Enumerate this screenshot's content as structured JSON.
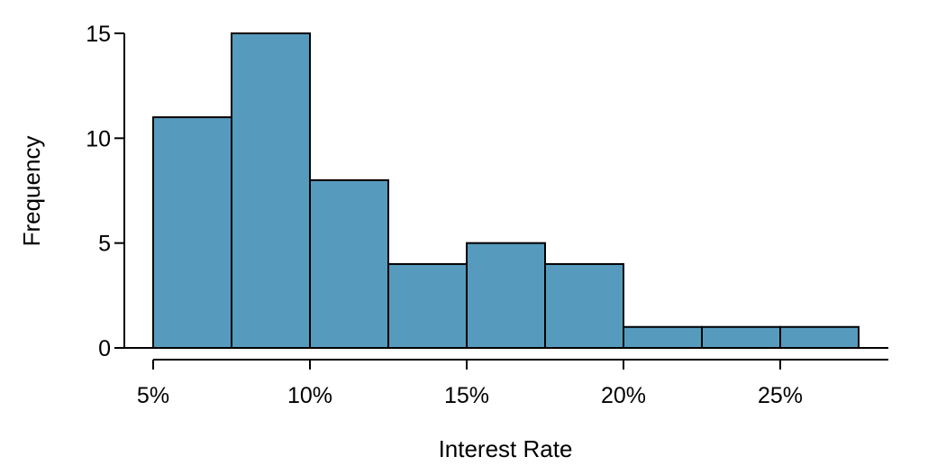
{
  "chart_data": {
    "type": "bar",
    "subtype": "histogram",
    "title": "",
    "xlabel": "Interest Rate",
    "ylabel": "Frequency",
    "bin_edges": [
      5,
      7.5,
      10,
      12.5,
      15,
      17.5,
      20,
      22.5,
      25,
      27.5
    ],
    "frequencies": [
      11,
      15,
      8,
      4,
      5,
      4,
      1,
      1,
      1
    ],
    "x_ticks": [
      {
        "value": 5,
        "label": "5%"
      },
      {
        "value": 10,
        "label": "10%"
      },
      {
        "value": 15,
        "label": "15%"
      },
      {
        "value": 20,
        "label": "20%"
      },
      {
        "value": 25,
        "label": "25%"
      }
    ],
    "y_ticks": [
      {
        "value": 0,
        "label": "0"
      },
      {
        "value": 5,
        "label": "5"
      },
      {
        "value": 10,
        "label": "10"
      },
      {
        "value": 15,
        "label": "15"
      }
    ],
    "xlim": [
      5,
      28.45
    ],
    "ylim": [
      0,
      15
    ],
    "grid": false,
    "legend": null,
    "colors": {
      "bar_fill": "#569BBD",
      "bar_border": "#000000",
      "axis": "#000000",
      "text": "#000000",
      "background": "#FFFFFF"
    }
  }
}
